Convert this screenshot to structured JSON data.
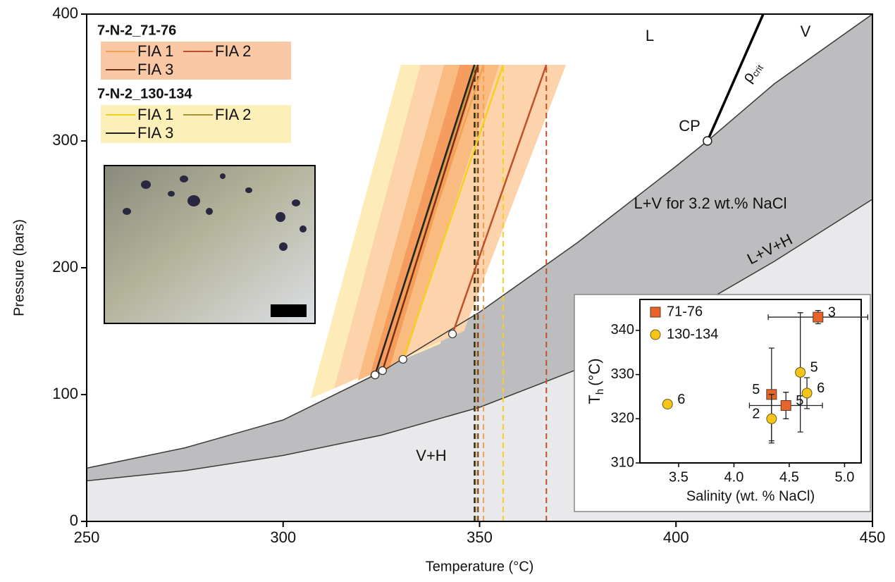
{
  "chart_data": [
    {
      "type": "line",
      "xlabel": "Temperature (°C)",
      "ylabel": "Pressure (bars)",
      "xlim": [
        250,
        450
      ],
      "ylim": [
        0,
        400
      ],
      "xticks": [
        250,
        300,
        350,
        400,
        450
      ],
      "yticks": [
        0,
        100,
        200,
        300,
        400
      ],
      "boundaries": {
        "lv": {
          "x": [
            250,
            275,
            300,
            325,
            350,
            375,
            400,
            408,
            425,
            450
          ],
          "y": [
            42,
            58,
            80,
            118,
            165,
            220,
            280,
            300,
            345,
            400
          ],
          "color": "#3a3a3a"
        },
        "lvh": {
          "x": [
            250,
            275,
            300,
            325,
            350,
            375,
            400,
            425,
            450
          ],
          "y": [
            32,
            40,
            52,
            68,
            90,
            120,
            160,
            205,
            254
          ],
          "color": "#3a3a3a"
        },
        "critical_density": {
          "x": [
            408,
            422.2
          ],
          "y": [
            300,
            400
          ],
          "color": "#000000"
        }
      },
      "region_colors": {
        "lv": "#bdbdc0",
        "vh": "#e9e9eb"
      },
      "cp": {
        "label": "CP",
        "x": 408,
        "y": 300
      },
      "region_labels": {
        "l": "L",
        "v": "V",
        "lv": "L+V for 3.2 wt.% NaCl",
        "lvh": "L+V+H",
        "vh": "V+H"
      },
      "rho_crit": {
        "symbol": "ρ",
        "sub": "crit"
      },
      "bands": [
        {
          "color": "#fdebb8",
          "x": [
            307,
            330,
            358,
            340
          ],
          "y": [
            97,
            360,
            360,
            140
          ]
        },
        {
          "color": "#fcd3ab",
          "x": [
            313,
            335,
            372,
            346
          ],
          "y": [
            105,
            360,
            360,
            150
          ]
        },
        {
          "color": "#f9bb80",
          "x": [
            319,
            341,
            355,
            331
          ],
          "y": [
            111,
            360,
            360,
            128
          ]
        },
        {
          "color": "#f59d5e",
          "x": [
            322,
            345,
            350,
            327
          ],
          "y": [
            114,
            360,
            360,
            120
          ]
        }
      ],
      "isochore_groups": [
        {
          "title": "7-N-2_71-76",
          "color": "#fbc8a6",
          "series": [
            {
              "name": "FIA 1",
              "color": "#f4a050",
              "x": [
                325.3,
                351.0
              ],
              "y": [
                118.9,
                360
              ]
            },
            {
              "name": "FIA 2",
              "color": "#c0502a",
              "x": [
                343.1,
                367.0
              ],
              "y": [
                147.8,
                360
              ]
            },
            {
              "name": "FIA 3",
              "color": "#7a3015",
              "x": [
                325.3,
                349.6
              ],
              "y": [
                118.9,
                360
              ]
            }
          ]
        },
        {
          "title": "7-N-2_130-134",
          "color": "#fdefb8",
          "series": [
            {
              "name": "FIA 1",
              "color": "#f5d020",
              "x": [
                330.5,
                356.0
              ],
              "y": [
                127.8,
                360
              ]
            },
            {
              "name": "FIA 2",
              "color": "#a89430",
              "x": [
                323.4,
                349.0
              ],
              "y": [
                115.5,
                360
              ]
            },
            {
              "name": "FIA 3",
              "color": "#222222",
              "x": [
                323.4,
                348.7
              ],
              "y": [
                115.5,
                360
              ]
            }
          ]
        }
      ]
    },
    {
      "type": "scatter",
      "xlabel": "Salinity (wt. % NaCl)",
      "ylabel": {
        "base": "T",
        "sub": "h",
        "unit": "(°C)"
      },
      "xlim": [
        3.15,
        5.15
      ],
      "ylim": [
        310,
        347
      ],
      "xticks": [
        3.5,
        {
          "value": 4,
          "label": "4.0"
        },
        4.5,
        {
          "value": 5,
          "label": "5.0"
        }
      ],
      "yticks": [
        310,
        320,
        330,
        340
      ],
      "series": [
        {
          "name": "71-76",
          "color": "#e8642a",
          "marker": "square",
          "x": [
            4.76,
            4.34,
            4.47
          ],
          "y": [
            343,
            325.5,
            323
          ],
          "xerr": [
            0.45,
            null,
            0.33
          ],
          "yerr": [
            1.5,
            10.5,
            3
          ],
          "labels": [
            "3",
            "5",
            "5"
          ]
        },
        {
          "name": "130-134",
          "color": "#f5c518",
          "marker": "circle",
          "x": [
            3.4,
            4.34,
            4.6,
            4.66
          ],
          "y": [
            323.3,
            320,
            330.5,
            325.8
          ],
          "xerr": [
            null,
            null,
            null,
            null
          ],
          "yerr": [
            null,
            5.5,
            13.5,
            3.5
          ],
          "labels": [
            "6",
            "2",
            "5",
            "6"
          ]
        }
      ]
    }
  ]
}
